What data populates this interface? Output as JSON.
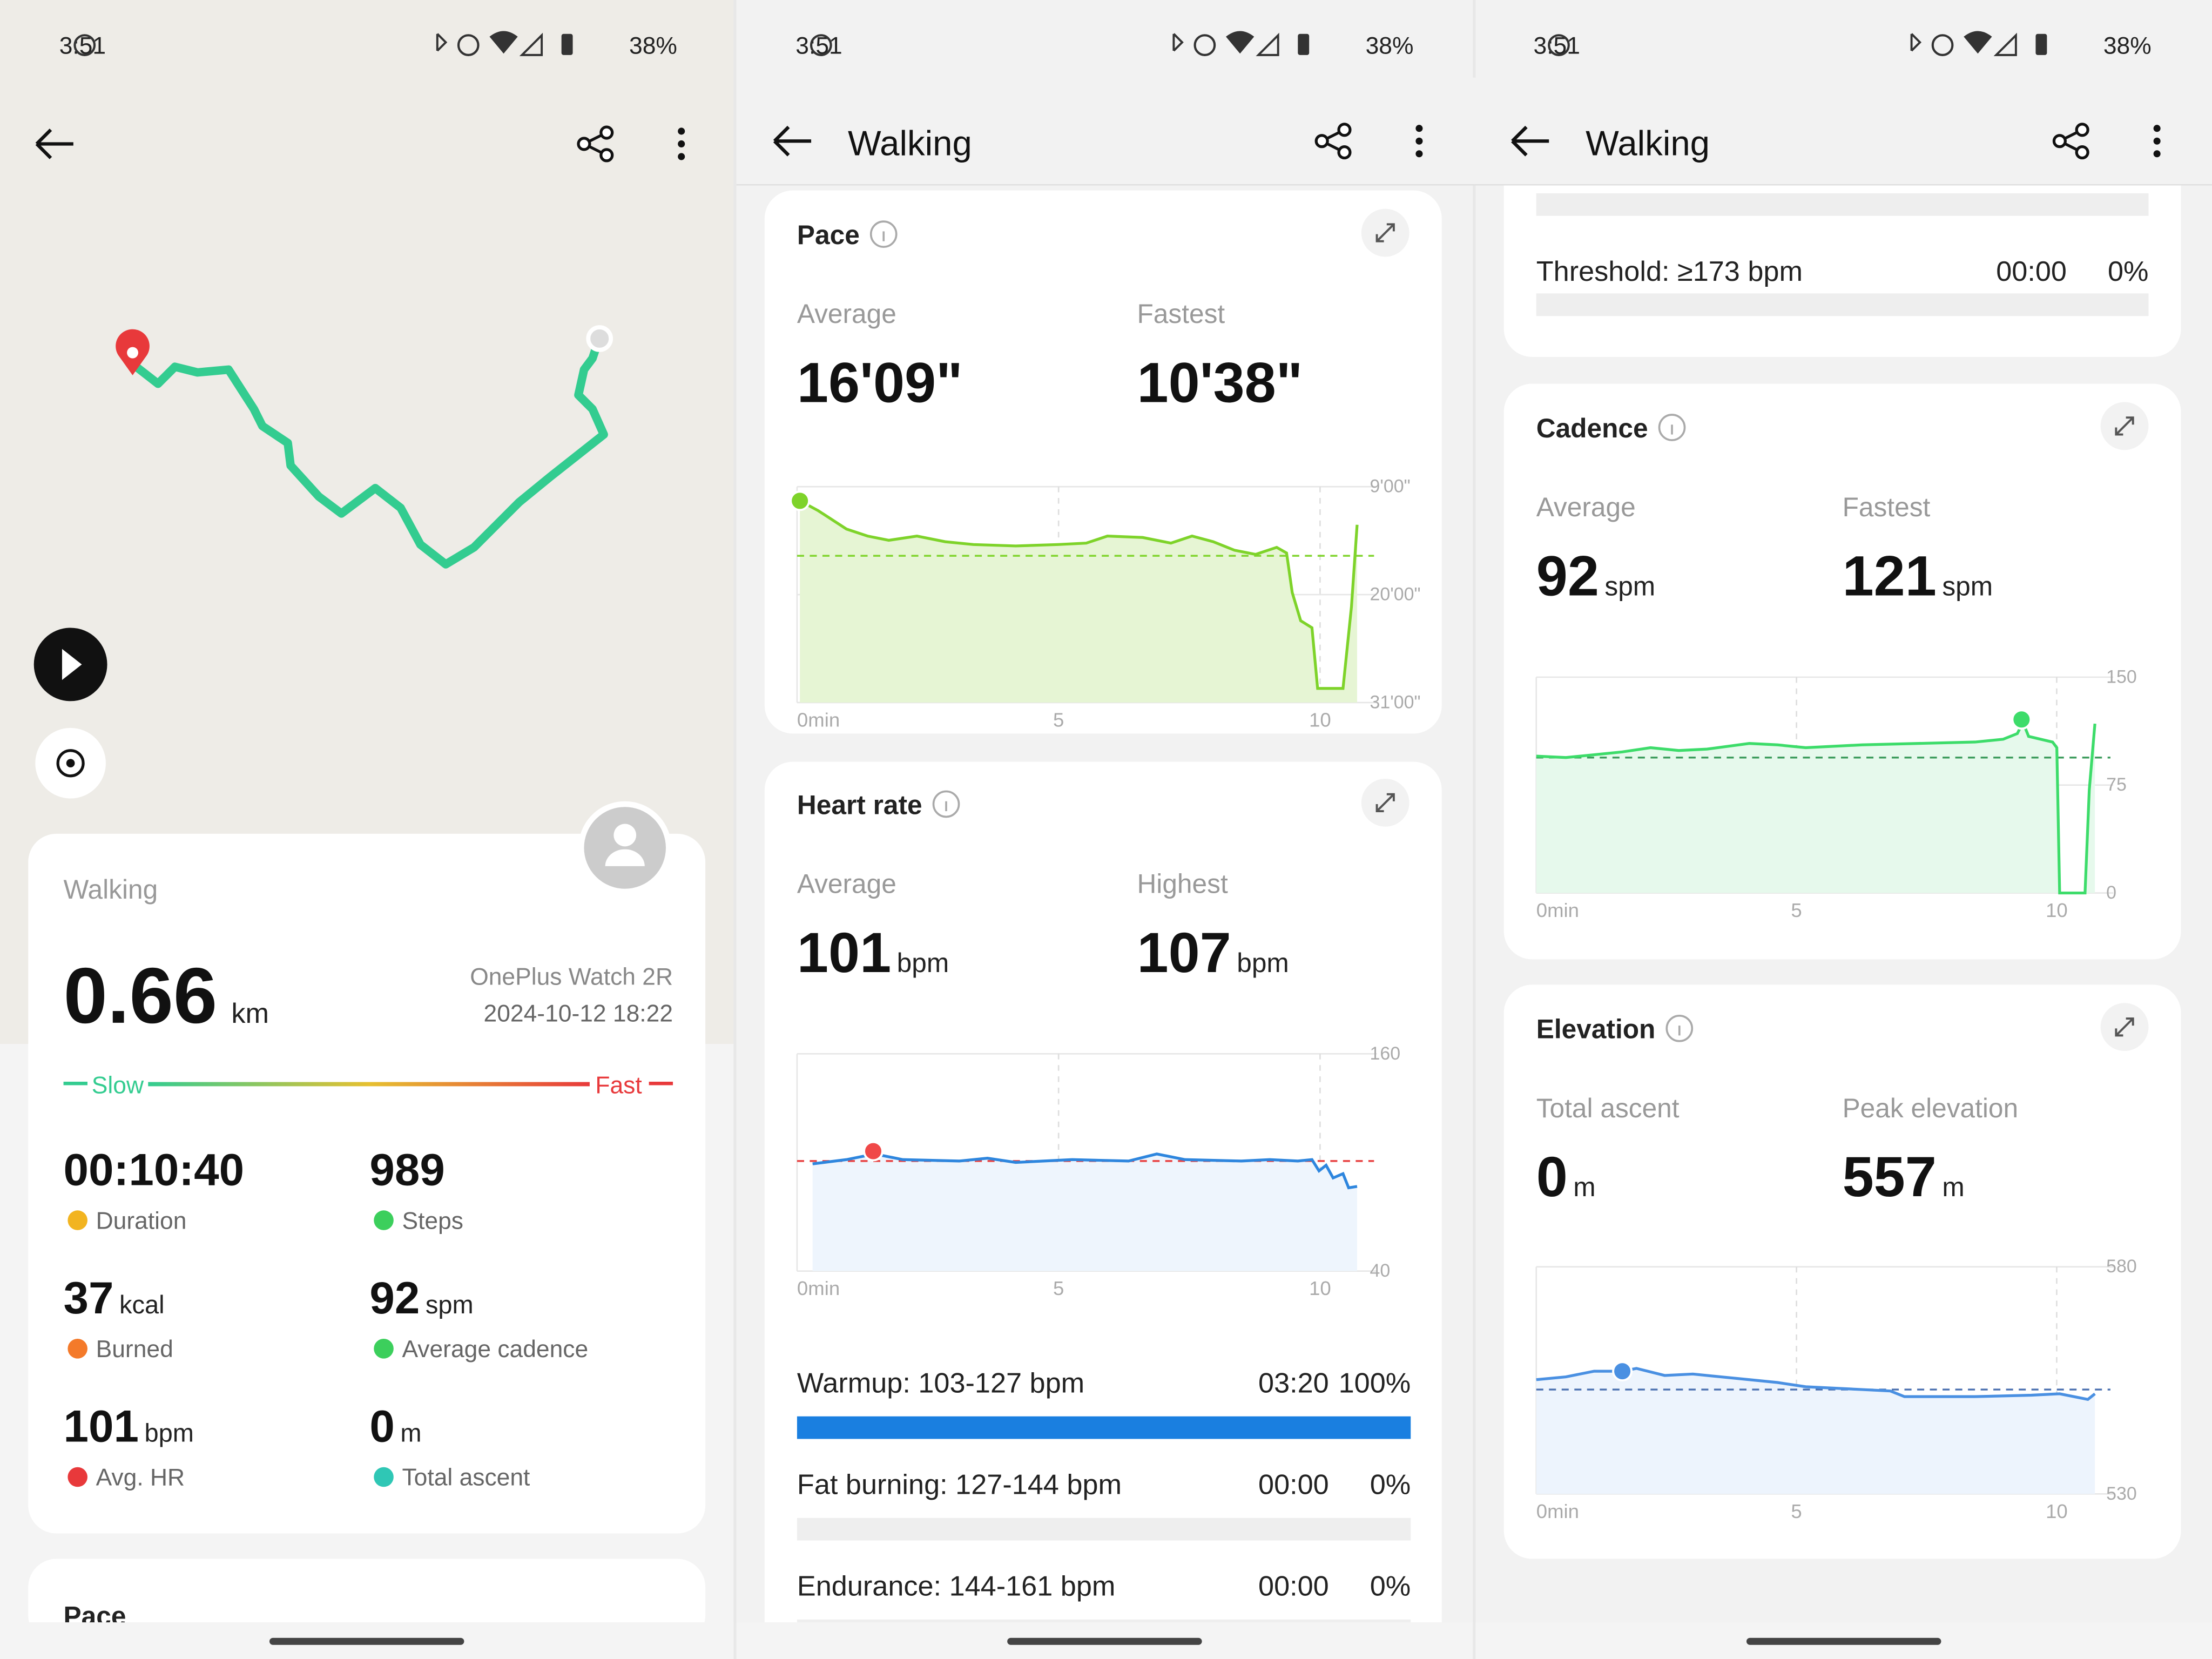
{
  "status_bar": {
    "time": "3:51",
    "battery": "38%"
  },
  "header": {
    "title": "Walking"
  },
  "summary": {
    "activity": "Walking",
    "distance": {
      "value": "0.66",
      "unit": "km"
    },
    "device": "OnePlus Watch 2R",
    "datetime": "2024-10-12 18:22",
    "speed_legend": {
      "slow": "Slow",
      "fast": "Fast"
    },
    "stats": [
      {
        "value": "00:10:40",
        "label": "Duration"
      },
      {
        "value": "989",
        "label": "Steps"
      },
      {
        "value": "37",
        "unit": "kcal",
        "label": "Burned"
      },
      {
        "value": "92",
        "unit": "spm",
        "label": "Average cadence"
      },
      {
        "value": "101",
        "unit": "bpm",
        "label": "Avg. HR"
      },
      {
        "value": "0",
        "unit": "m",
        "label": "Total ascent"
      }
    ]
  },
  "pace_preview": {
    "title": "Pace"
  },
  "pace": {
    "title": "Pace",
    "stats": [
      {
        "label": "Average",
        "value": "16'09\""
      },
      {
        "label": "Fastest",
        "value": "10'38\""
      }
    ],
    "y_ticks": [
      "9'00\"",
      "20'00\"",
      "31'00\""
    ],
    "x_ticks": [
      "0min",
      "5",
      "10"
    ]
  },
  "heart_rate": {
    "title": "Heart rate",
    "stats": [
      {
        "label": "Average",
        "value": "101",
        "unit": "bpm"
      },
      {
        "label": "Highest",
        "value": "107",
        "unit": "bpm"
      }
    ],
    "y_ticks": [
      "160",
      "40"
    ],
    "x_ticks": [
      "0min",
      "5",
      "10"
    ],
    "zones": [
      {
        "name": "Warmup: 103-127 bpm",
        "time": "03:20",
        "percent": "100%"
      },
      {
        "name": "Fat burning: 127-144 bpm",
        "time": "00:00",
        "percent": "0%"
      },
      {
        "name": "Endurance: 144-161 bpm",
        "time": "00:00",
        "percent": "0%"
      },
      {
        "name": "Threshold: ≥173 bpm",
        "time": "00:00",
        "percent": "0%"
      }
    ]
  },
  "cadence": {
    "title": "Cadence",
    "stats": [
      {
        "label": "Average",
        "value": "92",
        "unit": "spm"
      },
      {
        "label": "Fastest",
        "value": "121",
        "unit": "spm"
      }
    ],
    "y_ticks": [
      "150",
      "75",
      "0"
    ],
    "x_ticks": [
      "0min",
      "5",
      "10"
    ]
  },
  "elevation": {
    "title": "Elevation",
    "stats": [
      {
        "label": "Total ascent",
        "value": "0",
        "unit": "m"
      },
      {
        "label": "Peak elevation",
        "value": "557",
        "unit": "m"
      }
    ],
    "y_ticks": [
      "580",
      "530"
    ],
    "x_ticks": [
      "0min",
      "5",
      "10"
    ]
  }
}
